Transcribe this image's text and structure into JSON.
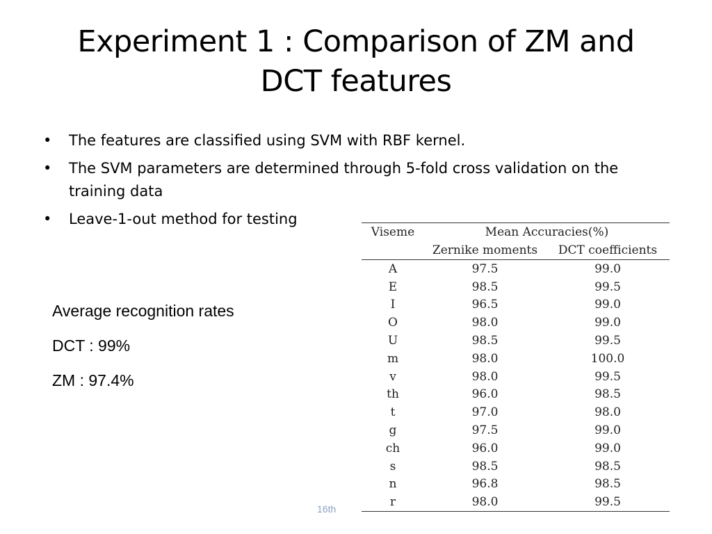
{
  "slide": {
    "title_line1": "Experiment 1 : Comparison of ZM and",
    "title_line2": "DCT features",
    "bullets": [
      "The features are classified using SVM with RBF kernel.",
      "The SVM parameters are determined through 5-fold cross validation on the training data",
      "Leave-1-out method for testing"
    ],
    "rates": {
      "heading": "Average recognition rates",
      "dct": "DCT : 99%",
      "zm": "ZM : 97.4%"
    },
    "footer": "16th"
  },
  "table": {
    "header_viseme": "Viseme",
    "header_mean": "Mean Accuracies(%)",
    "header_zm": "Zernike moments",
    "header_dct": "DCT coefficients",
    "rows": [
      {
        "viseme": "A",
        "zm": "97.5",
        "dct": "99.0"
      },
      {
        "viseme": "E",
        "zm": "98.5",
        "dct": "99.5"
      },
      {
        "viseme": "I",
        "zm": "96.5",
        "dct": "99.0"
      },
      {
        "viseme": "O",
        "zm": "98.0",
        "dct": "99.0"
      },
      {
        "viseme": "U",
        "zm": "98.5",
        "dct": "99.5"
      },
      {
        "viseme": "m",
        "zm": "98.0",
        "dct": "100.0"
      },
      {
        "viseme": "v",
        "zm": "98.0",
        "dct": "99.5"
      },
      {
        "viseme": "th",
        "zm": "96.0",
        "dct": "98.5"
      },
      {
        "viseme": "t",
        "zm": "97.0",
        "dct": "98.0"
      },
      {
        "viseme": "g",
        "zm": "97.5",
        "dct": "99.0"
      },
      {
        "viseme": "ch",
        "zm": "96.0",
        "dct": "99.0"
      },
      {
        "viseme": "s",
        "zm": "98.5",
        "dct": "98.5"
      },
      {
        "viseme": "n",
        "zm": "96.8",
        "dct": "98.5"
      },
      {
        "viseme": "r",
        "zm": "98.0",
        "dct": "99.5"
      }
    ]
  }
}
